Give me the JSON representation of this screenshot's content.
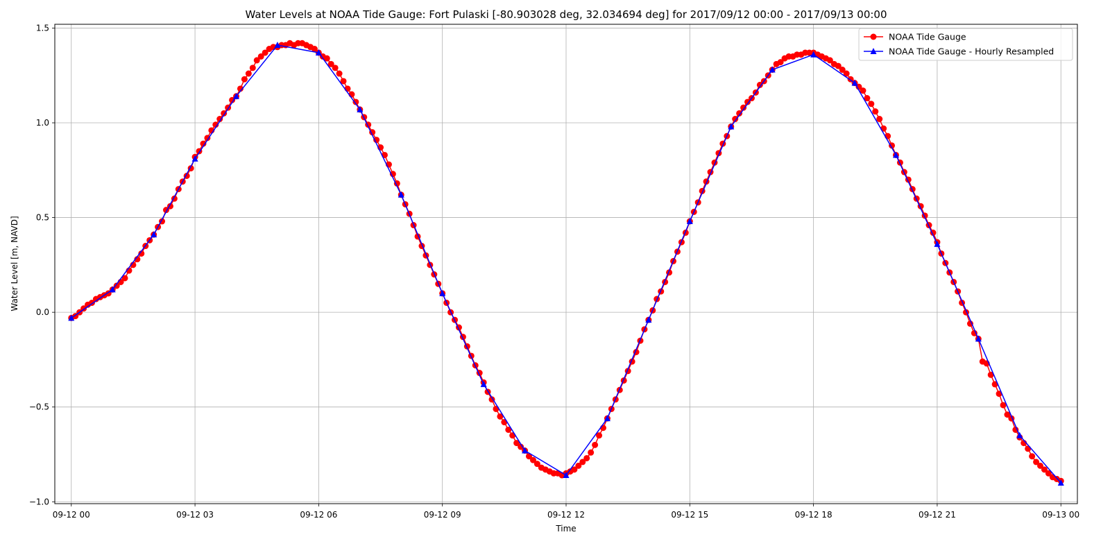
{
  "chart_data": {
    "type": "line",
    "title": "Water Levels at NOAA Tide Gauge: Fort Pulaski [-80.903028 deg, 32.034694 deg] for 2017/09/12 00:00 - 2017/09/13 00:00",
    "xlabel": "Time",
    "ylabel": "Water Level [m, NAVD]",
    "x_unit": "hours after 2017-09-12 00:00",
    "xlim": [
      -0.4,
      24.4
    ],
    "ylim": [
      -1.01,
      1.52
    ],
    "grid": true,
    "legend_position": "top-right",
    "x_ticks": [
      {
        "value": 0,
        "label": "09-12 00"
      },
      {
        "value": 3,
        "label": "09-12 03"
      },
      {
        "value": 6,
        "label": "09-12 06"
      },
      {
        "value": 9,
        "label": "09-12 09"
      },
      {
        "value": 12,
        "label": "09-12 12"
      },
      {
        "value": 15,
        "label": "09-12 15"
      },
      {
        "value": 18,
        "label": "09-12 18"
      },
      {
        "value": 21,
        "label": "09-12 21"
      },
      {
        "value": 24,
        "label": "09-13 00"
      }
    ],
    "y_ticks": [
      {
        "value": 1.5,
        "label": "1.5"
      },
      {
        "value": 1.0,
        "label": "1.0"
      },
      {
        "value": 0.5,
        "label": "0.5"
      },
      {
        "value": 0.0,
        "label": "0.0"
      },
      {
        "value": -0.5,
        "label": "−0.5"
      },
      {
        "value": -1.0,
        "label": "−1.0"
      }
    ],
    "series": [
      {
        "name": "NOAA Tide Gauge",
        "color": "#ff0000",
        "marker": "circle",
        "interval_hours": 0.1,
        "values": [
          -0.03,
          -0.02,
          0.0,
          0.02,
          0.04,
          0.05,
          0.07,
          0.08,
          0.09,
          0.1,
          0.12,
          0.14,
          0.16,
          0.18,
          0.22,
          0.25,
          0.28,
          0.31,
          0.35,
          0.38,
          0.41,
          0.45,
          0.48,
          0.54,
          0.56,
          0.6,
          0.65,
          0.69,
          0.72,
          0.76,
          0.82,
          0.85,
          0.89,
          0.92,
          0.96,
          0.99,
          1.02,
          1.05,
          1.08,
          1.12,
          1.14,
          1.18,
          1.23,
          1.26,
          1.29,
          1.33,
          1.35,
          1.37,
          1.39,
          1.4,
          1.4,
          1.41,
          1.41,
          1.42,
          1.41,
          1.42,
          1.42,
          1.41,
          1.4,
          1.39,
          1.37,
          1.35,
          1.34,
          1.31,
          1.29,
          1.26,
          1.22,
          1.18,
          1.15,
          1.11,
          1.07,
          1.03,
          0.99,
          0.95,
          0.91,
          0.87,
          0.83,
          0.78,
          0.73,
          0.68,
          0.62,
          0.57,
          0.52,
          0.46,
          0.4,
          0.35,
          0.3,
          0.25,
          0.2,
          0.15,
          0.1,
          0.05,
          0.0,
          -0.04,
          -0.08,
          -0.13,
          -0.18,
          -0.23,
          -0.28,
          -0.32,
          -0.37,
          -0.42,
          -0.46,
          -0.51,
          -0.55,
          -0.58,
          -0.62,
          -0.65,
          -0.69,
          -0.71,
          -0.73,
          -0.76,
          -0.78,
          -0.8,
          -0.82,
          -0.83,
          -0.84,
          -0.85,
          -0.85,
          -0.86,
          -0.85,
          -0.84,
          -0.83,
          -0.81,
          -0.79,
          -0.77,
          -0.74,
          -0.7,
          -0.65,
          -0.61,
          -0.56,
          -0.51,
          -0.46,
          -0.41,
          -0.36,
          -0.31,
          -0.26,
          -0.21,
          -0.15,
          -0.09,
          -0.04,
          0.01,
          0.07,
          0.11,
          0.16,
          0.21,
          0.27,
          0.32,
          0.37,
          0.42,
          0.48,
          0.53,
          0.58,
          0.64,
          0.69,
          0.74,
          0.79,
          0.84,
          0.89,
          0.93,
          0.98,
          1.02,
          1.05,
          1.08,
          1.11,
          1.13,
          1.16,
          1.2,
          1.22,
          1.25,
          1.28,
          1.31,
          1.32,
          1.34,
          1.35,
          1.35,
          1.36,
          1.36,
          1.37,
          1.37,
          1.37,
          1.36,
          1.35,
          1.34,
          1.33,
          1.31,
          1.3,
          1.28,
          1.26,
          1.23,
          1.21,
          1.19,
          1.17,
          1.13,
          1.1,
          1.06,
          1.02,
          0.97,
          0.93,
          0.88,
          0.83,
          0.79,
          0.74,
          0.7,
          0.65,
          0.6,
          0.56,
          0.51,
          0.46,
          0.42,
          0.37,
          0.31,
          0.26,
          0.21,
          0.16,
          0.11,
          0.05,
          0.0,
          -0.06,
          -0.11,
          -0.14,
          -0.26,
          -0.27,
          -0.33,
          -0.38,
          -0.43,
          -0.49,
          -0.54,
          -0.56,
          -0.62,
          -0.66,
          -0.69,
          -0.72,
          -0.76,
          -0.79,
          -0.81,
          -0.83,
          -0.85,
          -0.87,
          -0.88,
          -0.89
        ]
      },
      {
        "name": "NOAA Tide Gauge - Hourly Resampled",
        "color": "#0000ff",
        "marker": "triangle",
        "interval_hours": 1,
        "values": [
          -0.03,
          0.12,
          0.41,
          0.81,
          1.14,
          1.41,
          1.37,
          1.07,
          0.62,
          0.1,
          -0.38,
          -0.73,
          -0.86,
          -0.56,
          -0.04,
          0.48,
          0.98,
          1.28,
          1.36,
          1.21,
          0.83,
          0.36,
          -0.14,
          -0.65,
          -0.9
        ]
      }
    ]
  }
}
